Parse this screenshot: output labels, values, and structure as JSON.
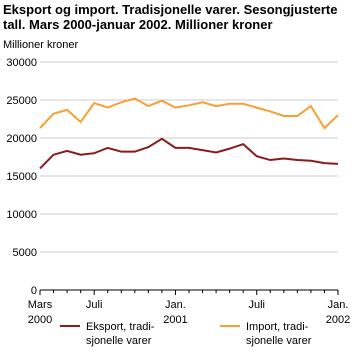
{
  "chart_data": {
    "type": "line",
    "title": "Eksport og import. Tradisjonelle varer. Sesongjusterte tall. Mars 2000-januar 2002. Millioner kroner",
    "y_label": "Millioner kroner",
    "categories": [
      "Mars\n2000",
      null,
      null,
      null,
      "Juli",
      null,
      null,
      null,
      null,
      null,
      "Jan.\n2001",
      null,
      null,
      null,
      null,
      null,
      "Juli",
      null,
      null,
      null,
      null,
      null,
      "Jan.\n2002"
    ],
    "series": [
      {
        "name": "Eksport, tradi-\nsjonelle varer",
        "color": "#8b1a1a",
        "values": [
          16000,
          17800,
          18300,
          17800,
          18000,
          18700,
          18200,
          18200,
          18800,
          19900,
          18700,
          18700,
          18400,
          18100,
          18600,
          19200,
          17600,
          17100,
          17300,
          17100,
          17000,
          16700,
          16600
        ]
      },
      {
        "name": "Import, tradi-\nsjonelle varer",
        "color": "#f7a035",
        "values": [
          21300,
          23200,
          23700,
          22100,
          24600,
          24000,
          24700,
          25200,
          24200,
          24900,
          24000,
          24300,
          24700,
          24200,
          24500,
          24500,
          24000,
          23500,
          22900,
          22900,
          24200,
          21300,
          23000
        ]
      }
    ],
    "ylim": [
      0,
      30000
    ],
    "yticks": [
      0,
      5000,
      10000,
      15000,
      20000,
      25000,
      30000
    ],
    "grid": true
  }
}
